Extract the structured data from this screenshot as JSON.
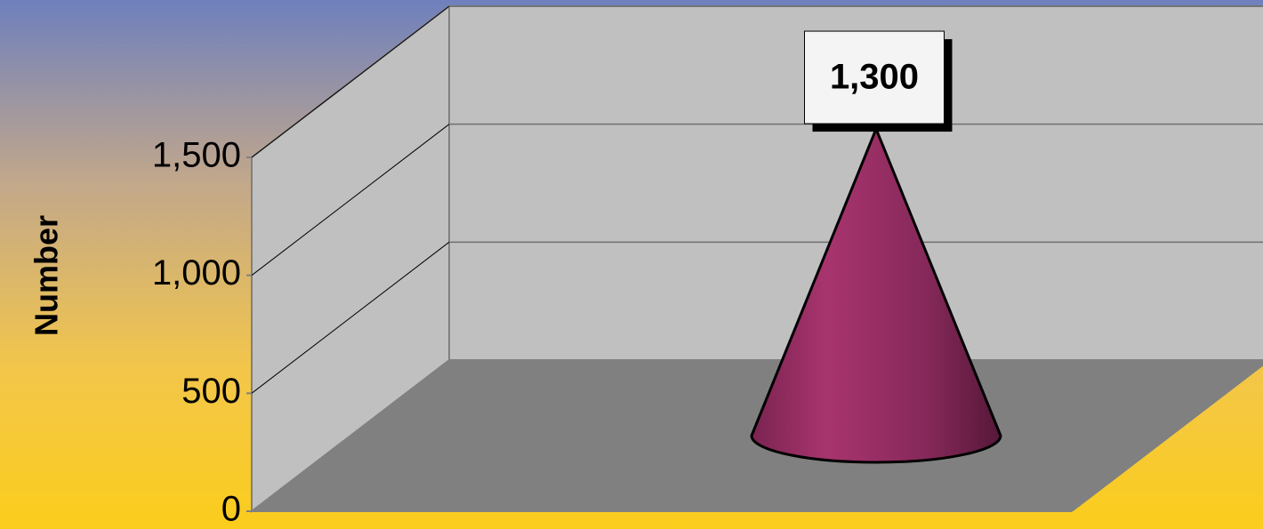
{
  "chart_data": {
    "type": "cone",
    "y_label": "Number",
    "values": [
      1300
    ],
    "value_labels": [
      "1,300"
    ],
    "color": "#8e2a5c",
    "ylim": [
      0,
      1500
    ],
    "yticks": [
      0,
      500,
      {
        "value": 1000,
        "label": "1,000"
      },
      {
        "value": 1500,
        "label": "1,500"
      }
    ],
    "grid": true
  }
}
